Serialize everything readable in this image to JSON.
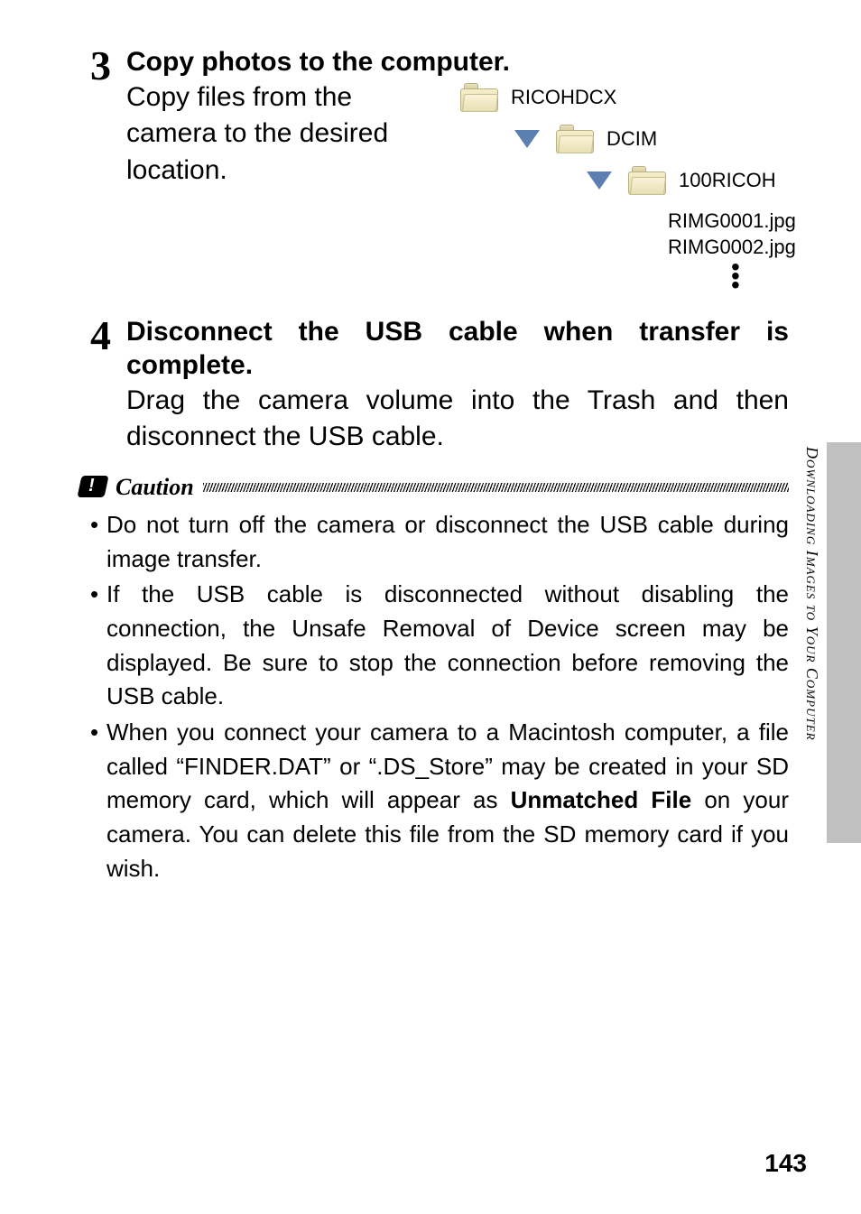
{
  "step3": {
    "number": "3",
    "title": "Copy photos to the computer.",
    "text": "Copy files from the camera to the desired location.",
    "tree": {
      "root": "RICOHDCX",
      "level2": "DCIM",
      "level3": "100RICOH",
      "files": [
        "RIMG0001.jpg",
        "RIMG0002.jpg"
      ]
    }
  },
  "step4": {
    "number": "4",
    "title": "Disconnect the USB cable when transfer is complete.",
    "text": "Drag the camera volume into the Trash and then disconnect the USB cable."
  },
  "caution": {
    "label": "Caution",
    "items": [
      {
        "text": "Do not turn off the camera or disconnect the USB cable during image transfer."
      },
      {
        "text": "If the USB cable is disconnected without disabling the connection, the Unsafe Removal of Device screen may be displayed. Be sure to stop the connection before removing the USB cable."
      },
      {
        "pre": "When you connect your camera to a Macintosh computer, a file called “FINDER.DAT” or “.DS_Store” may be created in your SD memory card, which will appear as ",
        "bold": "Unmatched File",
        "post": " on your camera. You can delete this file from the SD memory card if you wish."
      }
    ]
  },
  "sideLabel": "Downloading Images to Your Computer",
  "pageNumber": "143",
  "colors": {
    "triangle": "#5a7fb0",
    "tabGray": "#c0c0c0"
  }
}
